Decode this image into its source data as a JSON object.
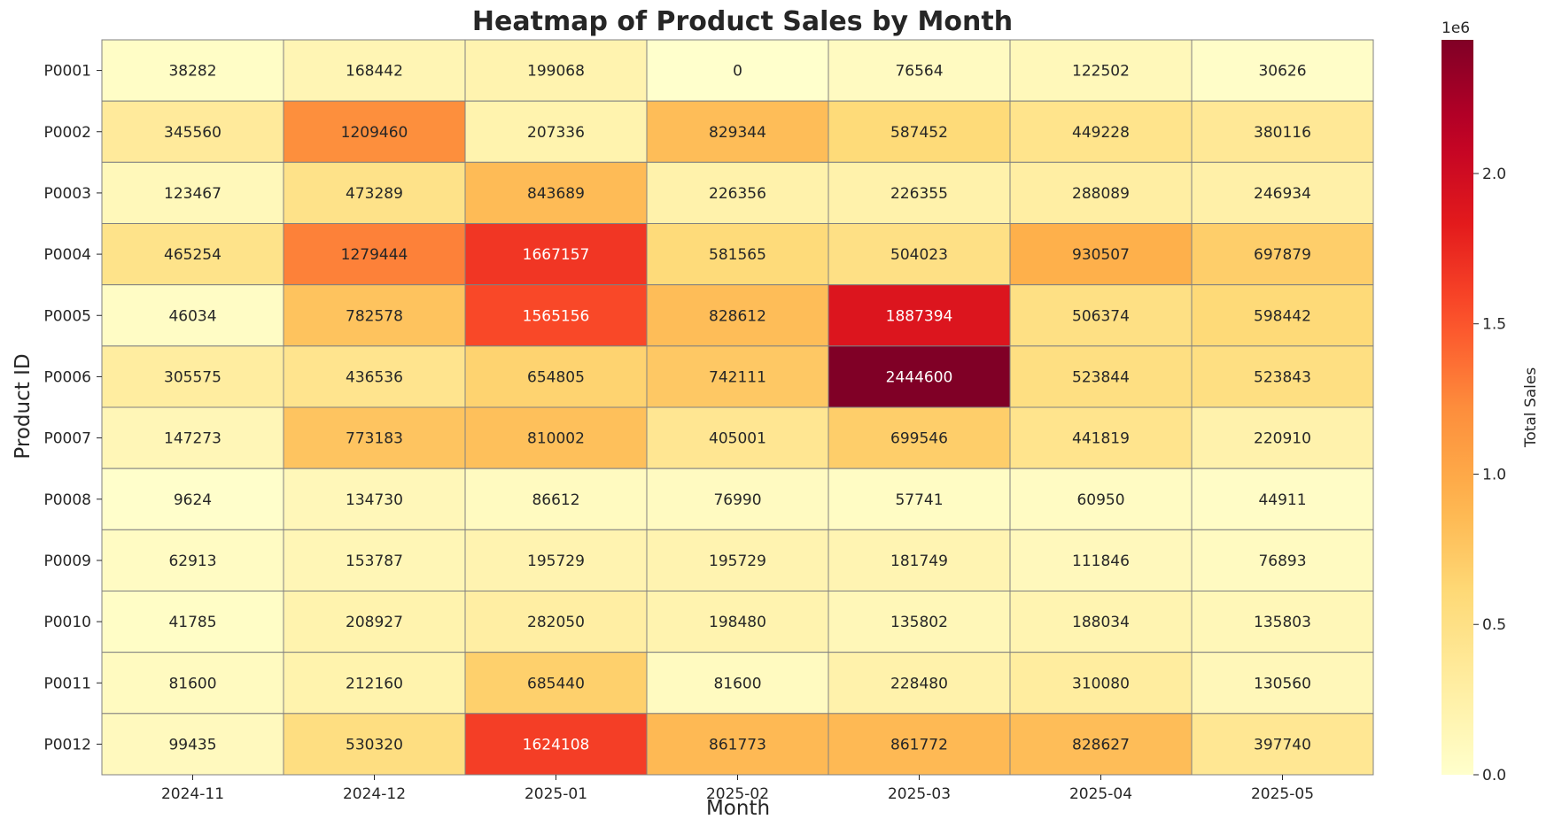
{
  "chart_data": {
    "type": "heatmap",
    "title": "Heatmap of Product Sales by Month",
    "xlabel": "Month",
    "ylabel": "Product ID",
    "x_categories": [
      "2024-11",
      "2024-12",
      "2025-01",
      "2025-02",
      "2025-03",
      "2025-04",
      "2025-05"
    ],
    "y_categories": [
      "P0001",
      "P0002",
      "P0003",
      "P0004",
      "P0005",
      "P0006",
      "P0007",
      "P0008",
      "P0009",
      "P0010",
      "P0011",
      "P0012"
    ],
    "values": [
      [
        38282,
        168442,
        199068,
        0,
        76564,
        122502,
        30626
      ],
      [
        345560,
        1209460,
        207336,
        829344,
        587452,
        449228,
        380116
      ],
      [
        123467,
        473289,
        843689,
        226356,
        226355,
        288089,
        246934
      ],
      [
        465254,
        1279444,
        1667157,
        581565,
        504023,
        930507,
        697879
      ],
      [
        46034,
        782578,
        1565156,
        828612,
        1887394,
        506374,
        598442
      ],
      [
        305575,
        436536,
        654805,
        742111,
        2444600,
        523844,
        523843
      ],
      [
        147273,
        773183,
        810002,
        405001,
        699546,
        441819,
        220910
      ],
      [
        9624,
        134730,
        86612,
        76990,
        57741,
        60950,
        44911
      ],
      [
        62913,
        153787,
        195729,
        195729,
        181749,
        111846,
        76893
      ],
      [
        41785,
        208927,
        282050,
        198480,
        135802,
        188034,
        135803
      ],
      [
        81600,
        212160,
        685440,
        81600,
        228480,
        310080,
        130560
      ],
      [
        99435,
        530320,
        1624108,
        861773,
        861772,
        828627,
        397740
      ]
    ],
    "colormap": "YlOrRd",
    "colorbar": {
      "label": "Total Sales",
      "range": [
        0,
        2444600
      ],
      "ticks": [
        0,
        500000,
        1000000,
        1500000,
        2000000
      ],
      "tick_labels": [
        "0.0",
        "0.5",
        "1.0",
        "1.5",
        "2.0"
      ],
      "multiplier": "1e6"
    },
    "cell_border_color": "#808080",
    "grid": false
  }
}
